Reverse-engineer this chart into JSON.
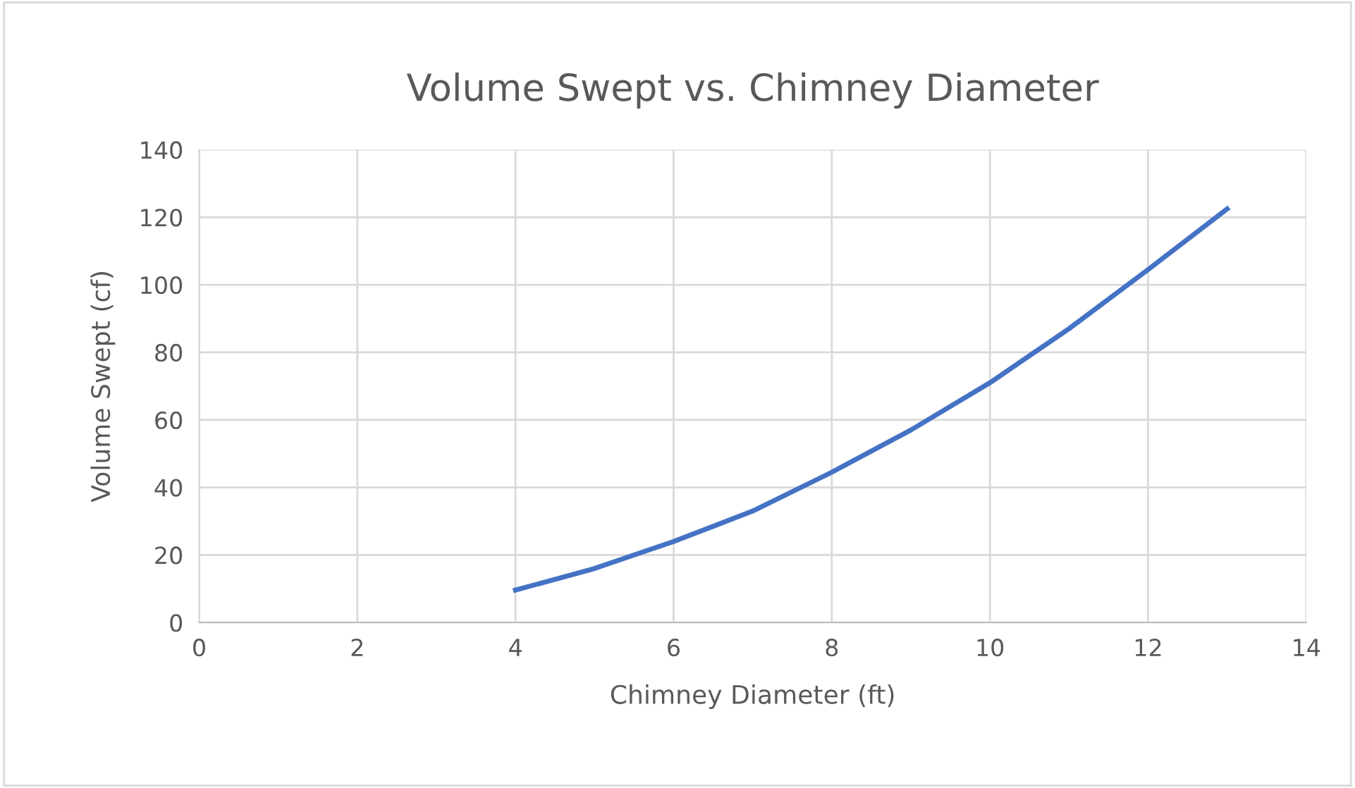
{
  "chart_data": {
    "type": "line",
    "title": "Volume Swept vs. Chimney Diameter",
    "xlabel": "Chimney Diameter (ft)",
    "ylabel": "Volume Swept (cf)",
    "x": [
      4,
      5,
      6,
      7,
      8,
      9,
      10,
      11,
      12,
      13
    ],
    "series": [
      {
        "color": "#4472c4",
        "values": [
          9.6,
          16,
          24,
          33,
          44.5,
          57,
          71,
          87,
          104.5,
          122.5
        ]
      }
    ],
    "xlim": [
      0,
      14
    ],
    "xticks": [
      0,
      2,
      4,
      6,
      8,
      10,
      12,
      14
    ],
    "ylim": [
      0,
      140
    ],
    "yticks": [
      0,
      20,
      40,
      60,
      80,
      100,
      120,
      140
    ],
    "grid": true,
    "marker": "none",
    "line_style": "solid",
    "legend": false
  }
}
